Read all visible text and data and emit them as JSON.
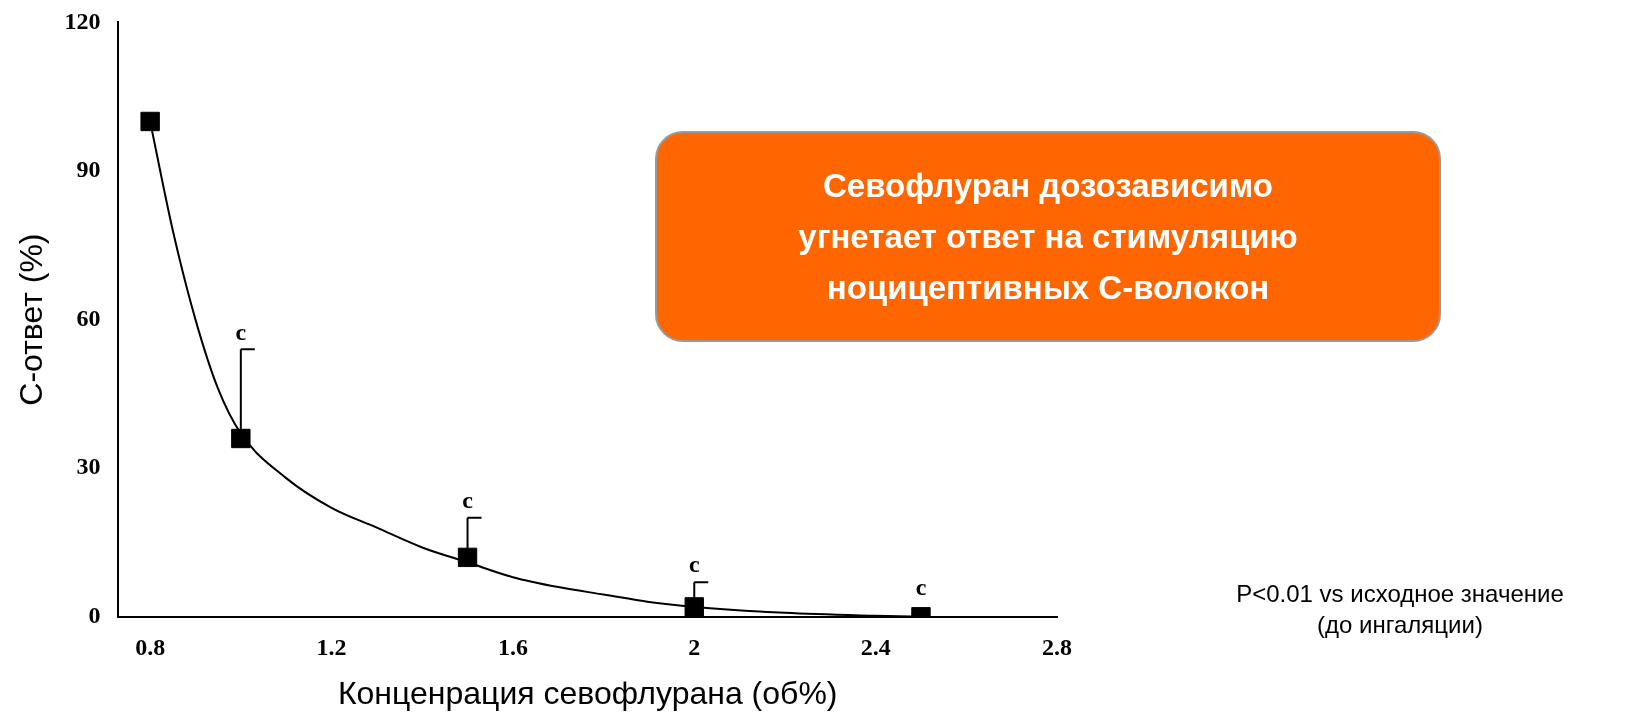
{
  "chart_data": {
    "type": "scatter",
    "xlabel": "Конценрация севофлурана (об%)",
    "ylabel": "С-ответ (%)",
    "xlim": [
      0.73,
      2.8
    ],
    "xticks": [
      0.8,
      1.2,
      1.6,
      2,
      2.4,
      2.8
    ],
    "ylim": [
      0,
      120
    ],
    "yticks": [
      0,
      30,
      60,
      90,
      120
    ],
    "grid": false,
    "legend": false,
    "series": [
      {
        "type": "line",
        "color": "#000000",
        "marker": "none",
        "line_style": "solid",
        "x": [
          0.8,
          0.85,
          0.9,
          0.95,
          1.0,
          1.1,
          1.2,
          1.3,
          1.4,
          1.5,
          1.6,
          1.7,
          1.8,
          1.9,
          2.0,
          2.2,
          2.4,
          2.5
        ],
        "values": [
          100,
          78,
          60,
          46,
          37,
          28,
          22,
          18,
          14,
          11,
          8,
          6,
          4.5,
          3,
          2,
          0.8,
          0.2,
          0
        ]
      },
      {
        "color": "#000000",
        "marker": "square",
        "x": [
          0.8,
          1.0,
          1.5,
          2.0,
          2.5
        ],
        "values": [
          100,
          36,
          12,
          2,
          0
        ],
        "errors": [
          null,
          [
            36,
            54
          ],
          [
            12,
            20
          ],
          [
            2,
            7
          ],
          null
        ]
      }
    ],
    "annotations": [
      {
        "text": "c",
        "x": 1.0,
        "y": 54
      },
      {
        "text": "c",
        "x": 1.5,
        "y": 20
      },
      {
        "text": "c",
        "x": 2.0,
        "y": 7
      },
      {
        "text": "c",
        "x": 2.5,
        "y": 0
      },
      "Севофлуран дозозависимо угнетает ответ на стимуляцию ноцицептивных С-волокон",
      "P<0.01 vs исходное значение (до ингаляции)"
    ]
  }
}
